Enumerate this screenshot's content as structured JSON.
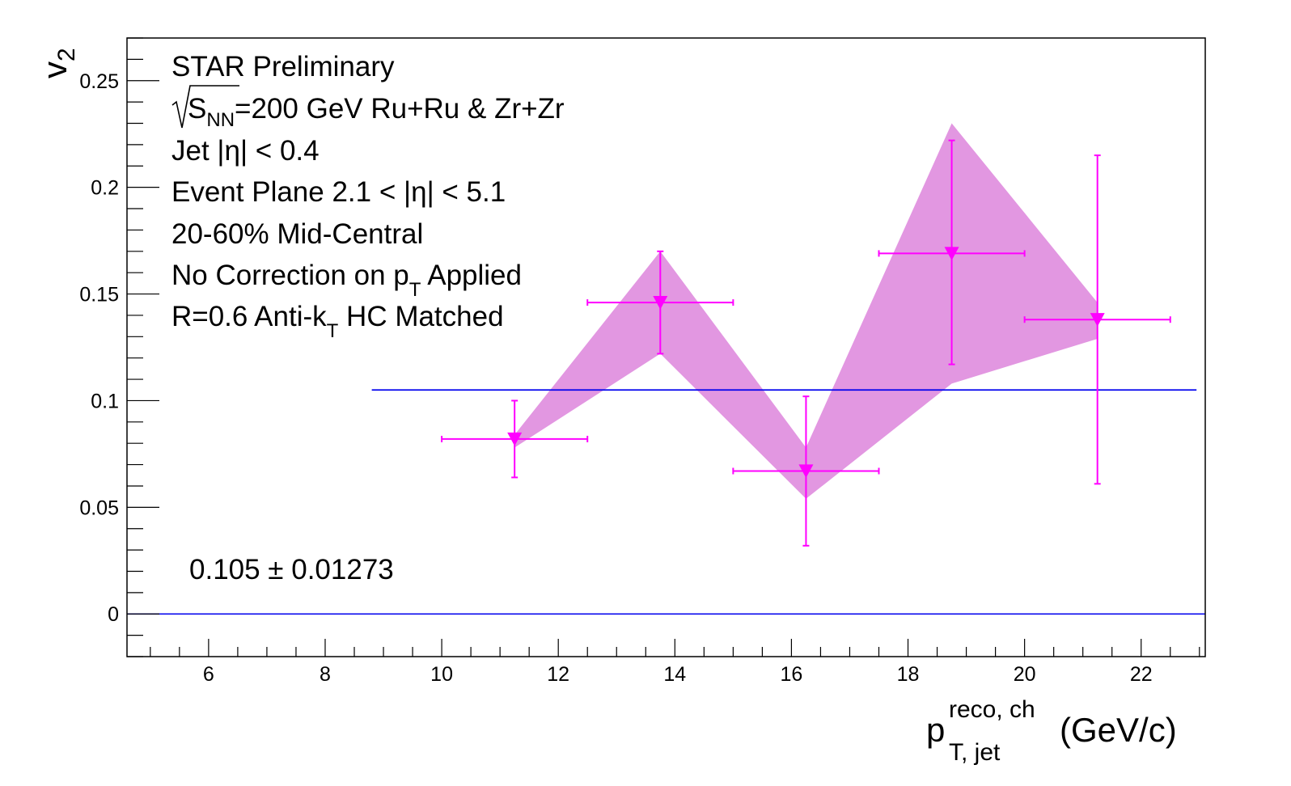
{
  "chart_data": {
    "type": "scatter",
    "xlabel": {
      "main": "p",
      "superscript": "reco, ch",
      "subscript": "T, jet",
      "unit": "(GeV/c)"
    },
    "ylabel": {
      "main": "v",
      "subscript": "2"
    },
    "xlim": [
      4.6,
      23.1
    ],
    "ylim": [
      -0.02,
      0.27
    ],
    "x_ticks": [
      6,
      8,
      10,
      12,
      14,
      16,
      18,
      20,
      22
    ],
    "y_ticks": [
      0,
      0.05,
      0.1,
      0.15,
      0.2,
      0.25
    ],
    "x_tick_labels": [
      "6",
      "8",
      "10",
      "12",
      "14",
      "16",
      "18",
      "20",
      "22"
    ],
    "y_tick_labels": [
      "0",
      "0.05",
      "0.1",
      "0.15",
      "0.2",
      "0.25"
    ],
    "series": [
      {
        "marker": "triangle-down",
        "color": "#ff00ff",
        "x": [
          11.25,
          13.75,
          16.25,
          18.75,
          21.25
        ],
        "x_err": [
          1.25,
          1.25,
          1.25,
          1.25,
          1.25
        ],
        "y": [
          0.082,
          0.146,
          0.067,
          0.169,
          0.138
        ],
        "y_err_low": [
          0.018,
          0.024,
          0.035,
          0.052,
          0.077
        ],
        "y_err_high": [
          0.018,
          0.024,
          0.035,
          0.053,
          0.077
        ],
        "sys_low": [
          0.078,
          0.122,
          0.054,
          0.108,
          0.129
        ],
        "sys_high": [
          0.084,
          0.17,
          0.078,
          0.23,
          0.146
        ],
        "band_color": "#e297e1"
      }
    ],
    "fit_line": {
      "value": 0.105,
      "x_start": 8.8,
      "x_end": 22.95,
      "color": "#0000ee"
    },
    "zero_line": {
      "value": 0,
      "color": "#0000ee"
    },
    "annotations": [
      {
        "id": "preliminary",
        "text": "STAR Preliminary"
      },
      {
        "id": "energy",
        "text_before": "S",
        "text_sub": "NN",
        "text_after": "=200 GeV Ru+Ru & Zr+Zr"
      },
      {
        "id": "jet-eta",
        "text": "Jet |η| < 0.4"
      },
      {
        "id": "event-plane",
        "text": "Event Plane 2.1 < |η| < 5.1"
      },
      {
        "id": "centrality",
        "text": "20-60% Mid-Central"
      },
      {
        "id": "correction",
        "text_before": "No Correction on p",
        "text_sub": "T",
        "text_after": " Applied"
      },
      {
        "id": "jet-def",
        "text_before": "R=0.6 Anti-k",
        "text_sub": "T",
        "text_after": " HC Matched"
      }
    ],
    "fit_result": "0.105 ± 0.01273",
    "grid": false,
    "legend": "none"
  }
}
